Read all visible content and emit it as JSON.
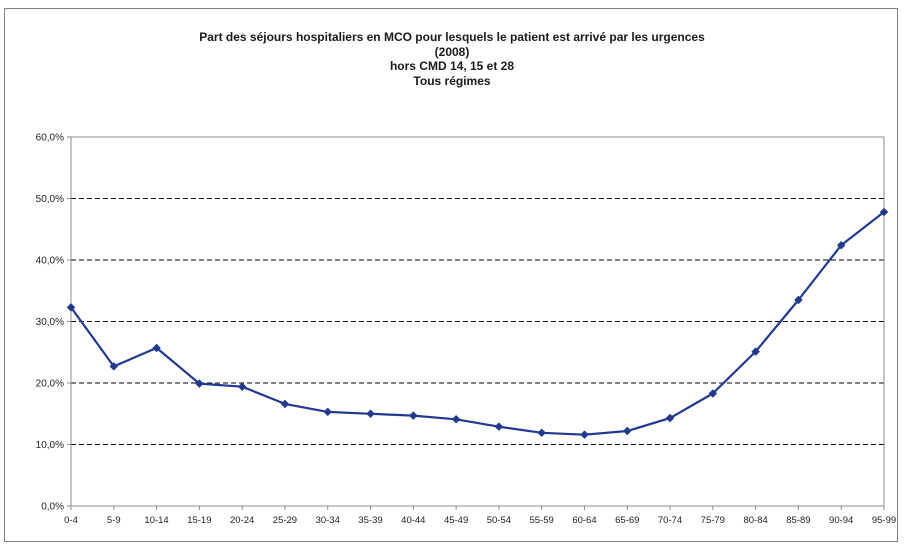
{
  "chart_data": {
    "type": "line",
    "title": "Part des séjours hospitaliers en MCO pour lesquels le patient est arrivé par les urgences",
    "subtitle_lines": [
      "(2008)",
      "hors CMD 14, 15 et 28",
      "Tous régimes"
    ],
    "categories": [
      "0-4",
      "5-9",
      "10-14",
      "15-19",
      "20-24",
      "25-29",
      "30-34",
      "35-39",
      "40-44",
      "45-49",
      "50-54",
      "55-59",
      "60-64",
      "65-69",
      "70-74",
      "75-79",
      "80-84",
      "85-89",
      "90-94",
      "95-99"
    ],
    "series": [
      {
        "values": [
          32.3,
          22.7,
          25.7,
          19.9,
          19.4,
          16.6,
          15.3,
          15.0,
          14.7,
          14.1,
          12.9,
          11.9,
          11.6,
          12.2,
          14.3,
          18.3,
          25.1,
          33.5,
          42.4,
          47.8
        ]
      }
    ],
    "y_ticks": [
      "0,0%",
      "10,0%",
      "20,0%",
      "30,0%",
      "40,0%",
      "50,0%",
      "60,0%"
    ],
    "ylim": [
      0,
      60
    ],
    "grid": "horizontal dashed",
    "legend": "none",
    "colors": {
      "line": "#1f3a8f",
      "grid": "#000000",
      "axis": "#8c8c8c"
    }
  }
}
